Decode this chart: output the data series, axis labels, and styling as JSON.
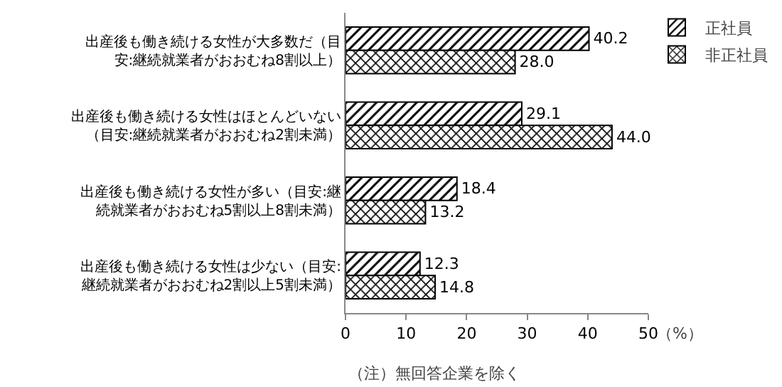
{
  "chart_data": {
    "type": "bar",
    "orientation": "horizontal",
    "categories": [
      "出産後も働き続ける女性が大多数だ（目安:継続就業者がおおむね8割以上）",
      "出産後も働き続ける女性はほとんどいない（目安:継続就業者がおおむね2割未満）",
      "出産後も働き続ける女性が多い（目安:継続就業者がおおむね5割以上8割未満）",
      "出産後も働き続ける女性は少ない（目安:継続就業者がおおむね2割以上5割未満）"
    ],
    "series": [
      {
        "name": "正社員",
        "color": "#000000",
        "values": [
          40.2,
          29.1,
          18.4,
          12.3
        ],
        "value_labels": [
          "40.2",
          "29.1",
          "18.4",
          "12.3"
        ]
      },
      {
        "name": "非正社員",
        "color": "#000000",
        "values": [
          28.0,
          44.0,
          13.2,
          14.8
        ],
        "value_labels": [
          "28.0",
          "44.0",
          "13.2",
          "14.8"
        ]
      }
    ],
    "xlim": [
      0,
      50
    ],
    "xticks": [
      0,
      10,
      20,
      30,
      40,
      50
    ],
    "xlabel": "（%）",
    "annotations": [
      "（注）無回答企業を除く"
    ],
    "legend": "top right",
    "grid": false
  }
}
